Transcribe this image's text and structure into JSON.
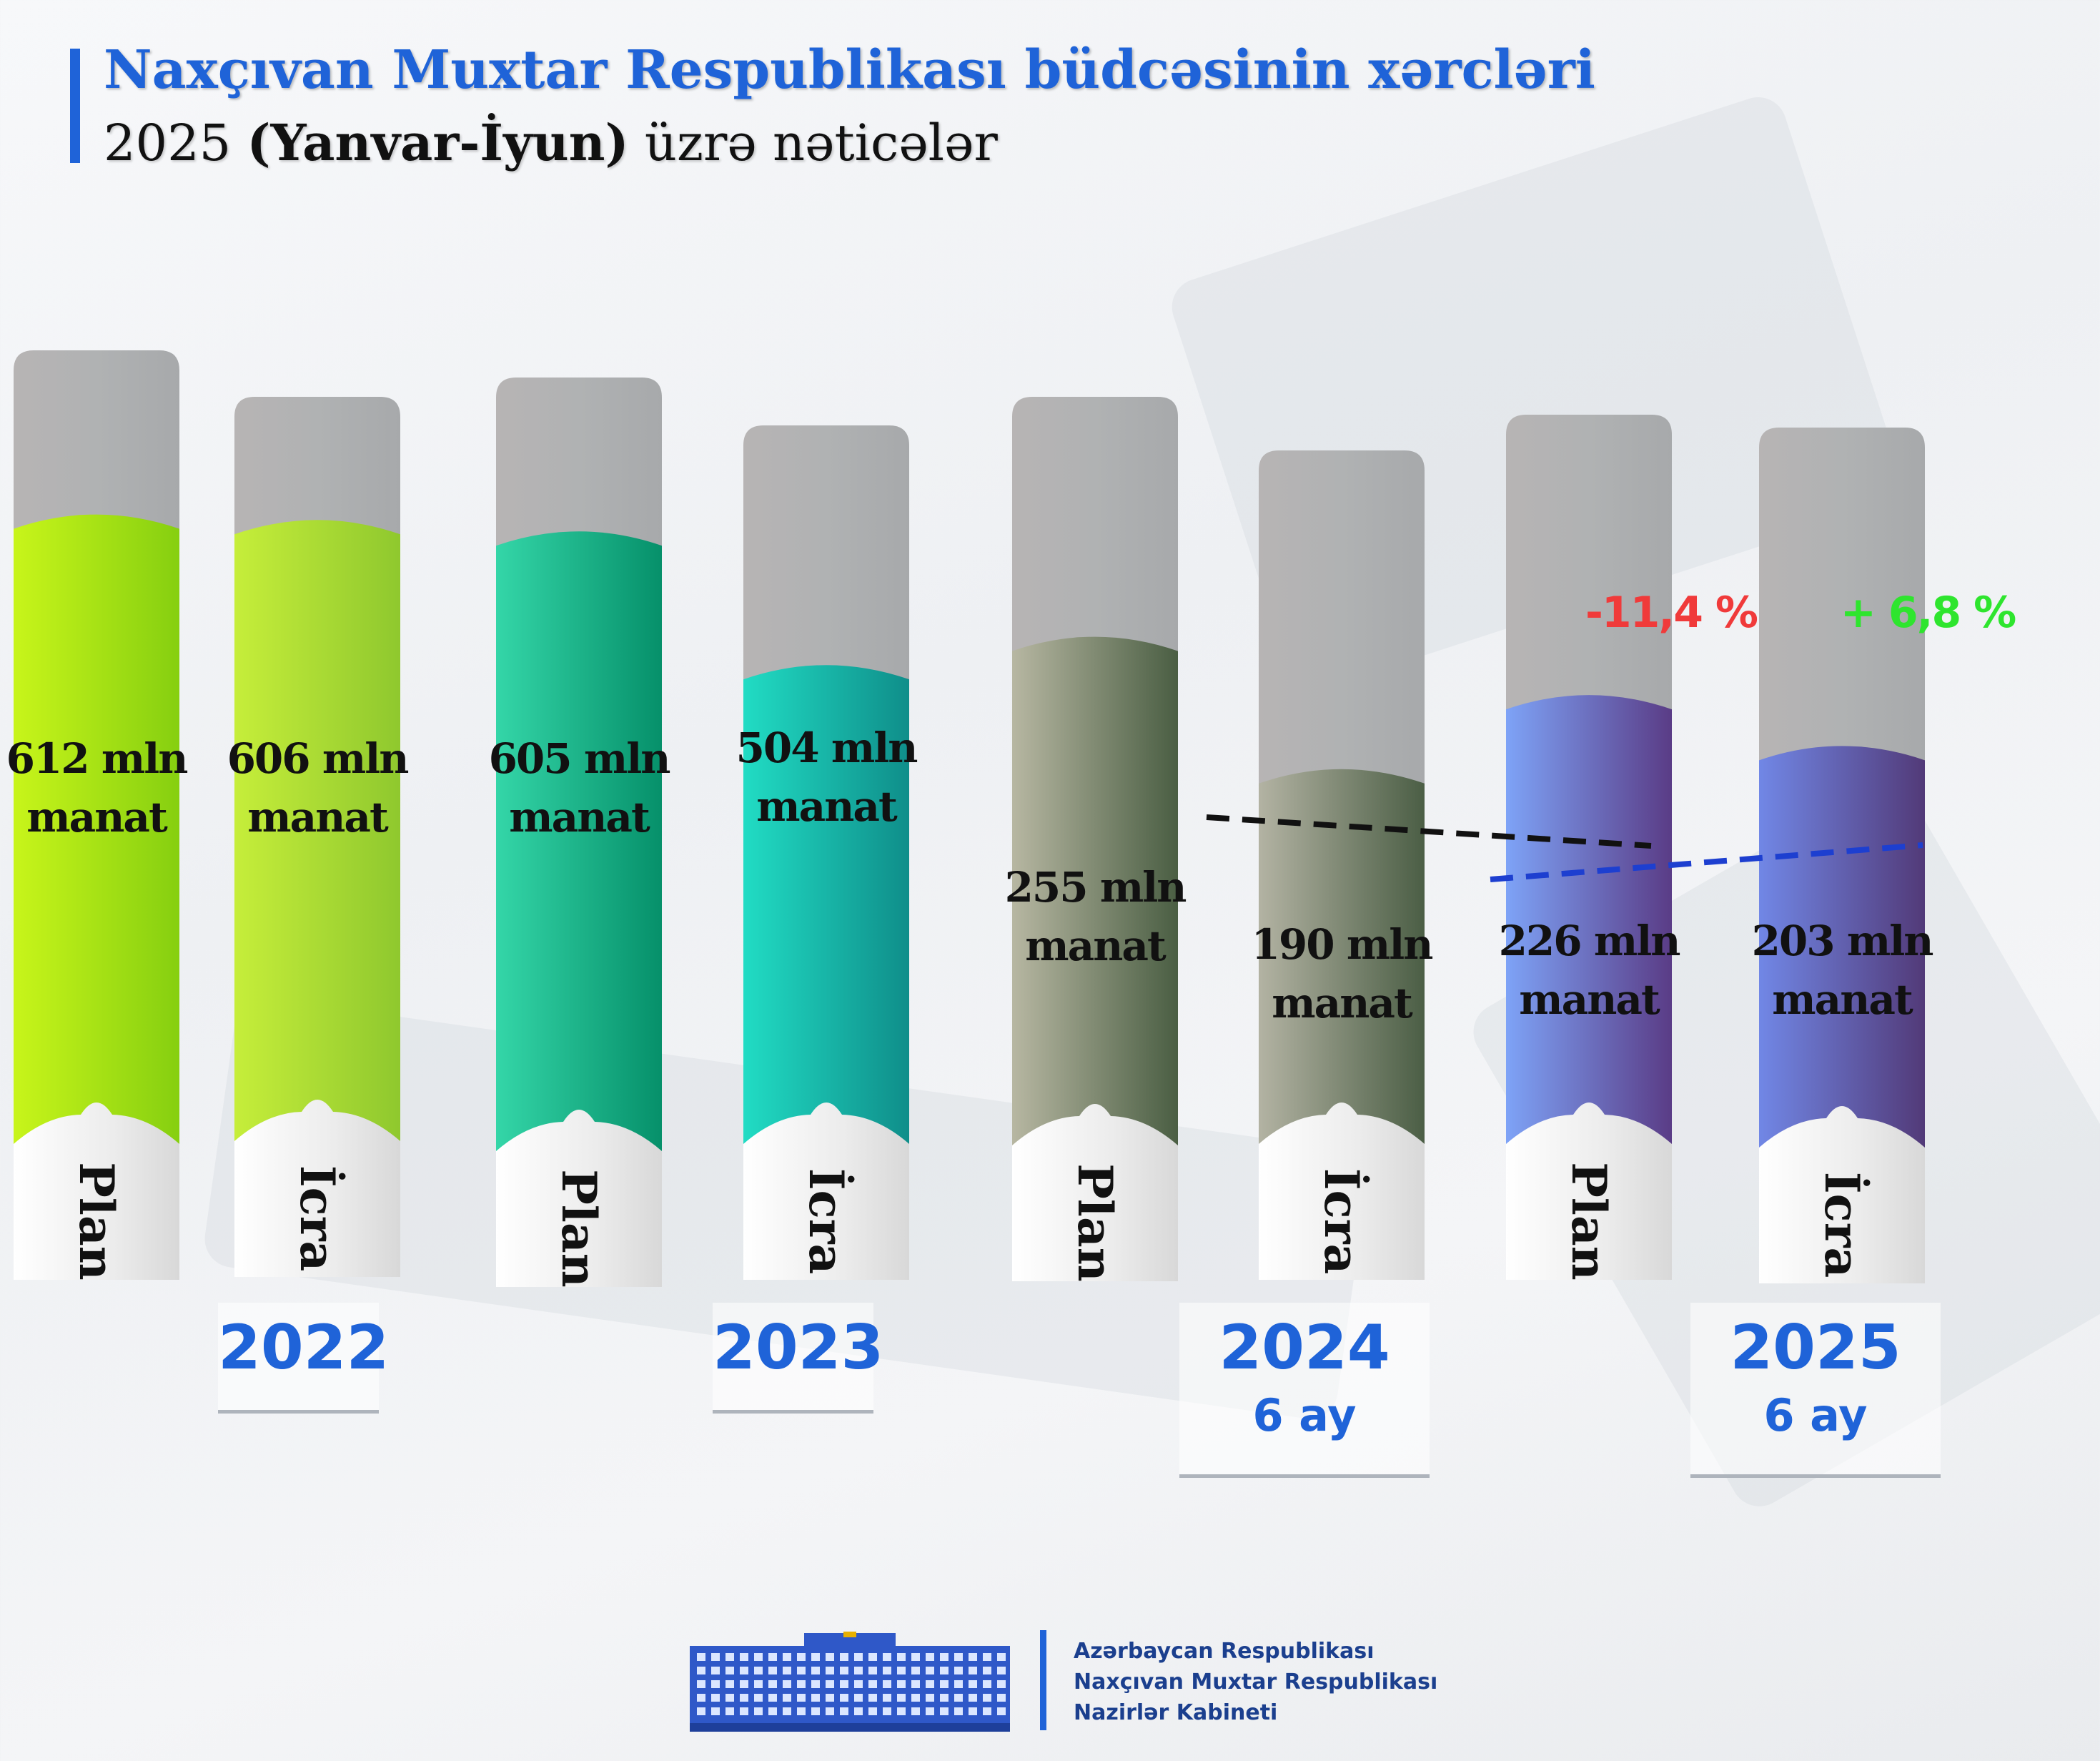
{
  "header": {
    "title": "Naxçıvan Muxtar Respublikası büdcəsinin xərcləri",
    "subtitle_pre": "2025 ",
    "subtitle_bold": "(Yanvar-İyun)",
    "subtitle_post": " üzrə nəticələr"
  },
  "chart_data": {
    "type": "bar",
    "unit": "mln manat",
    "bars": [
      {
        "year": "2022",
        "category": "Plan",
        "value": 612,
        "label_line1": "612 mln",
        "label_line2": "manat",
        "colors": [
          "#c8f51a",
          "#86cf10"
        ]
      },
      {
        "year": "2022",
        "category": "İcra",
        "value": 606,
        "label_line1": "606 mln",
        "label_line2": "manat",
        "colors": [
          "#c6ee3a",
          "#8fc82e"
        ]
      },
      {
        "year": "2023",
        "category": "Plan",
        "value": 605,
        "label_line1": "605 mln",
        "label_line2": "manat",
        "colors": [
          "#34d6a8",
          "#06906a"
        ]
      },
      {
        "year": "2023",
        "category": "İcra",
        "value": 504,
        "label_line1": "504 mln",
        "label_line2": "manat",
        "colors": [
          "#21dcc4",
          "#0f8e8a"
        ]
      },
      {
        "year": "2024",
        "category": "Plan",
        "value": 255,
        "label_line1": "255 mln",
        "label_line2": "manat",
        "colors": [
          "#b7b7a2",
          "#4a5e43"
        ]
      },
      {
        "year": "2024",
        "category": "İcra",
        "value": 190,
        "label_line1": "190 mln",
        "label_line2": "manat",
        "colors": [
          "#b3b3a3",
          "#4b5e45"
        ]
      },
      {
        "year": "2025",
        "category": "Plan",
        "value": 226,
        "label_line1": "226 mln",
        "label_line2": "manat",
        "colors": [
          "#7ea3f7",
          "#5a3c86"
        ]
      },
      {
        "year": "2025",
        "category": "İcra",
        "value": 203,
        "label_line1": "203 mln",
        "label_line2": "manat",
        "colors": [
          "#7187e6",
          "#523a78"
        ]
      }
    ],
    "changes": [
      {
        "text": "-11,4 %",
        "color": "#f03a3a"
      },
      {
        "text": "+ 6,8 %",
        "color": "#2ee52e"
      }
    ],
    "year_labels": [
      {
        "year": "2022",
        "sub": ""
      },
      {
        "year": "2023",
        "sub": ""
      },
      {
        "year": "2024",
        "sub": "6 ay"
      },
      {
        "year": "2025",
        "sub": "6 ay"
      }
    ],
    "trend_lines": [
      {
        "color": "#111111"
      },
      {
        "color": "#1d3fd0"
      }
    ]
  },
  "footer": {
    "line1": "Azərbaycan Respublikası",
    "line2": "Naxçıvan Muxtar Respublikası",
    "line3": "Nazirlər Kabineti"
  }
}
